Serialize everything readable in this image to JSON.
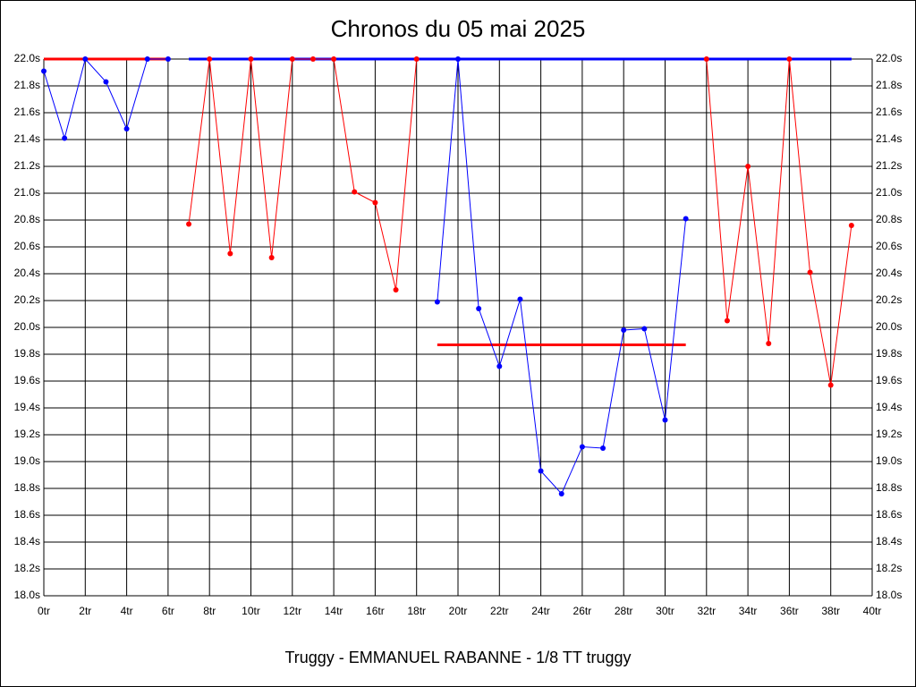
{
  "chart_data": {
    "type": "line",
    "title": "Chronos du 05 mai 2025",
    "subtitle": "Truggy - EMMANUEL RABANNE - 1/8 TT truggy",
    "xlim": [
      0,
      40
    ],
    "ylim": [
      18,
      22
    ],
    "grid": true,
    "xticks": [
      {
        "value": 0,
        "label": "0tr"
      },
      {
        "value": 2,
        "label": "2tr"
      },
      {
        "value": 4,
        "label": "4tr"
      },
      {
        "value": 6,
        "label": "6tr"
      },
      {
        "value": 8,
        "label": "8tr"
      },
      {
        "value": 10,
        "label": "10tr"
      },
      {
        "value": 12,
        "label": "12tr"
      },
      {
        "value": 14,
        "label": "14tr"
      },
      {
        "value": 16,
        "label": "16tr"
      },
      {
        "value": 18,
        "label": "18tr"
      },
      {
        "value": 20,
        "label": "20tr"
      },
      {
        "value": 22,
        "label": "22tr"
      },
      {
        "value": 24,
        "label": "24tr"
      },
      {
        "value": 26,
        "label": "26tr"
      },
      {
        "value": 28,
        "label": "28tr"
      },
      {
        "value": 30,
        "label": "30tr"
      },
      {
        "value": 32,
        "label": "32tr"
      },
      {
        "value": 34,
        "label": "34tr"
      },
      {
        "value": 36,
        "label": "36tr"
      },
      {
        "value": 38,
        "label": "38tr"
      },
      {
        "value": 40,
        "label": "40tr"
      }
    ],
    "yticks": [
      {
        "value": 18,
        "label": "18.0s"
      },
      {
        "value": 18.2,
        "label": "18.2s"
      },
      {
        "value": 18.4,
        "label": "18.4s"
      },
      {
        "value": 18.6,
        "label": "18.6s"
      },
      {
        "value": 18.8,
        "label": "18.8s"
      },
      {
        "value": 19,
        "label": "19.0s"
      },
      {
        "value": 19.2,
        "label": "19.2s"
      },
      {
        "value": 19.4,
        "label": "19.4s"
      },
      {
        "value": 19.6,
        "label": "19.6s"
      },
      {
        "value": 19.8,
        "label": "19.8s"
      },
      {
        "value": 20,
        "label": "20.0s"
      },
      {
        "value": 20.2,
        "label": "20.2s"
      },
      {
        "value": 20.4,
        "label": "20.4s"
      },
      {
        "value": 20.6,
        "label": "20.6s"
      },
      {
        "value": 20.8,
        "label": "20.8s"
      },
      {
        "value": 21,
        "label": "21.0s"
      },
      {
        "value": 21.2,
        "label": "21.2s"
      },
      {
        "value": 21.4,
        "label": "21.4s"
      },
      {
        "value": 21.6,
        "label": "21.6s"
      },
      {
        "value": 21.8,
        "label": "21.8s"
      },
      {
        "value": 22,
        "label": "22.0s"
      }
    ],
    "series": [
      {
        "color": "#0000ff",
        "x": [
          0,
          1,
          2,
          3,
          4,
          5,
          6
        ],
        "values": [
          21.91,
          21.41,
          22,
          21.83,
          21.48,
          22,
          22
        ]
      },
      {
        "color": "#ff0000",
        "x": [
          7,
          8,
          9,
          10,
          11,
          12,
          13,
          14,
          15,
          16,
          17,
          18
        ],
        "values": [
          20.77,
          22,
          20.55,
          22,
          20.52,
          22,
          22,
          22,
          21.01,
          20.93,
          20.28,
          22
        ]
      },
      {
        "color": "#0000ff",
        "x": [
          19,
          20,
          21,
          22,
          23,
          24,
          25,
          26,
          27,
          28,
          29,
          30,
          31
        ],
        "values": [
          20.19,
          22,
          20.14,
          19.71,
          20.21,
          18.93,
          18.76,
          19.11,
          19.1,
          19.98,
          19.99,
          19.31,
          20.81
        ]
      },
      {
        "color": "#ff0000",
        "x": [
          32,
          33,
          34,
          35,
          36,
          37,
          38,
          39
        ],
        "values": [
          22,
          20.05,
          21.2,
          19.88,
          22,
          20.41,
          19.57,
          20.76
        ]
      }
    ],
    "reference_lines": [
      {
        "color": "#ff0000",
        "x": [
          0,
          6
        ],
        "value": 22
      },
      {
        "color": "#0000ff",
        "x": [
          7,
          39
        ],
        "value": 22
      },
      {
        "color": "#ff0000",
        "x": [
          19,
          31
        ],
        "value": 19.87
      },
      {
        "color": "#0000ff",
        "x": [
          32,
          39
        ],
        "value": 22
      }
    ]
  }
}
